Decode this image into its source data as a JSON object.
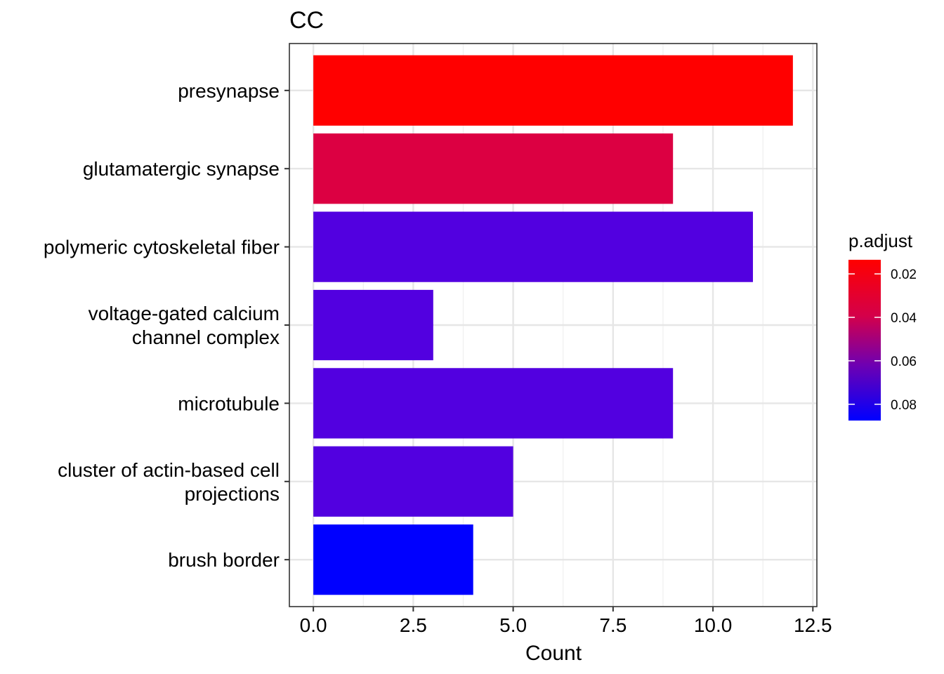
{
  "chart_data": {
    "type": "bar",
    "orientation": "horizontal",
    "title": "CC",
    "xlabel": "Count",
    "ylabel": "",
    "xlim": [
      -0.6,
      12.6
    ],
    "xticks": [
      "0.0",
      "2.5",
      "5.0",
      "7.5",
      "10.0",
      "12.5"
    ],
    "grid": true,
    "categories": [
      [
        "presynapse"
      ],
      [
        "glutamatergic synapse"
      ],
      [
        "polymeric cytoskeletal fiber"
      ],
      [
        "voltage-gated calcium",
        "channel complex"
      ],
      [
        "microtubule"
      ],
      [
        "cluster of actin-based cell",
        "projections"
      ],
      [
        "brush border"
      ]
    ],
    "values": [
      12,
      9,
      11,
      3,
      9,
      5,
      4
    ],
    "p_adjust": [
      0.029,
      0.043,
      0.071,
      0.071,
      0.071,
      0.071,
      0.085
    ],
    "colors": [
      "#ff0000",
      "#dc0042",
      "#5200e0",
      "#5200e0",
      "#5200e0",
      "#5200e0",
      "#0000ff"
    ],
    "legend": {
      "title": "p.adjust",
      "position": "right",
      "labels": [
        "0.02",
        "0.04",
        "0.06",
        "0.08"
      ],
      "color_low_padjust": "#ff0000",
      "color_high_padjust": "#0000ff"
    }
  }
}
